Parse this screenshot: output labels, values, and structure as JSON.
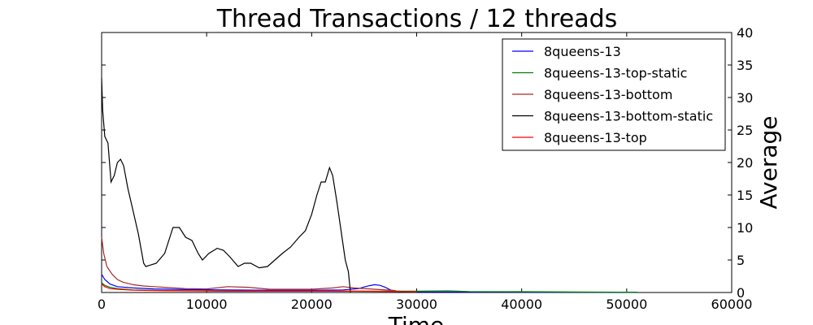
{
  "chart_data": {
    "type": "line",
    "title": "Thread Transactions / 12 threads",
    "xlabel": "Time",
    "ylabel": "Average",
    "y_axis_side": "right",
    "xlim": [
      0,
      60000
    ],
    "ylim": [
      0,
      40
    ],
    "x_ticks": [
      0,
      10000,
      20000,
      30000,
      40000,
      50000,
      60000
    ],
    "y_ticks": [
      0,
      5,
      10,
      15,
      20,
      25,
      30,
      35,
      40
    ],
    "grid": false,
    "legend_position": "top-right",
    "series": [
      {
        "name": "8queens-13",
        "color": "#0000ff",
        "x": [
          0,
          300,
          800,
          1500,
          3000,
          5000,
          8000,
          12000,
          16000,
          20000,
          23000,
          24500,
          25000,
          25500,
          26000,
          26500,
          27000,
          27500,
          28000,
          30000,
          35000,
          40000,
          45000,
          51000
        ],
        "y": [
          2.8,
          2.0,
          1.3,
          0.9,
          0.7,
          0.55,
          0.45,
          0.4,
          0.35,
          0.35,
          0.4,
          0.6,
          0.85,
          1.05,
          1.2,
          1.1,
          0.8,
          0.4,
          0.2,
          0.1,
          0.08,
          0.06,
          0.05,
          0.05
        ]
      },
      {
        "name": "8queens-13-top-static",
        "color": "#008000",
        "x": [
          0,
          300,
          800,
          1500,
          3000,
          6000,
          10000,
          15000,
          20000,
          25000,
          28000,
          30000,
          33000,
          35000,
          40000,
          45000,
          51000
        ],
        "y": [
          1.5,
          1.1,
          0.8,
          0.6,
          0.4,
          0.3,
          0.25,
          0.2,
          0.2,
          0.2,
          0.2,
          0.2,
          0.25,
          0.15,
          0.12,
          0.08,
          0.05
        ]
      },
      {
        "name": "8queens-13-bottom",
        "color": "#a52a2a",
        "x": [
          0,
          200,
          500,
          1000,
          1500,
          2000,
          3000,
          4000,
          5000,
          6000,
          8000,
          10000,
          12000,
          14000,
          16000,
          18000,
          20000,
          22000,
          23000,
          24000,
          26000,
          28000
        ],
        "y": [
          8.5,
          6.0,
          4.0,
          2.8,
          2.0,
          1.6,
          1.2,
          1.0,
          0.9,
          0.8,
          0.6,
          0.55,
          0.9,
          0.8,
          0.5,
          0.5,
          0.5,
          0.7,
          0.9,
          0.7,
          0.5,
          0.3
        ]
      },
      {
        "name": "8queens-13-bottom-static",
        "color": "#000000",
        "x": [
          0,
          100,
          300,
          600,
          900,
          1200,
          1500,
          1800,
          2100,
          2500,
          3000,
          3500,
          4000,
          4200,
          4600,
          5200,
          6000,
          6800,
          7400,
          8000,
          8600,
          9200,
          9600,
          10200,
          11000,
          11600,
          12200,
          13000,
          13600,
          14200,
          15000,
          15800,
          16500,
          17200,
          18000,
          18800,
          19400,
          20000,
          20500,
          20900,
          21300,
          21700,
          22000,
          22400,
          22800,
          23200,
          23500,
          23700
        ],
        "y": [
          33,
          28,
          24,
          23,
          17,
          18,
          20,
          20.5,
          19.5,
          16,
          12.5,
          9,
          4.5,
          4.0,
          4.2,
          4.5,
          6,
          10,
          10,
          8.5,
          8,
          6,
          5,
          6,
          6.8,
          6.5,
          5.5,
          4,
          4.5,
          4.5,
          3.8,
          4.0,
          5.0,
          6.0,
          7.0,
          8.5,
          9.5,
          12,
          15,
          17,
          17,
          19.2,
          18,
          14,
          9.5,
          5,
          3.2,
          0
        ]
      },
      {
        "name": "8queens-13-top",
        "color": "#ff0000",
        "x": [
          0,
          300,
          800,
          1500,
          3000,
          5000,
          8000,
          12000,
          16000,
          20000,
          24000,
          28000,
          30000
        ],
        "y": [
          1.3,
          0.9,
          0.6,
          0.5,
          0.35,
          0.3,
          0.25,
          0.2,
          0.2,
          0.2,
          0.2,
          0.15,
          0.1
        ]
      }
    ]
  }
}
